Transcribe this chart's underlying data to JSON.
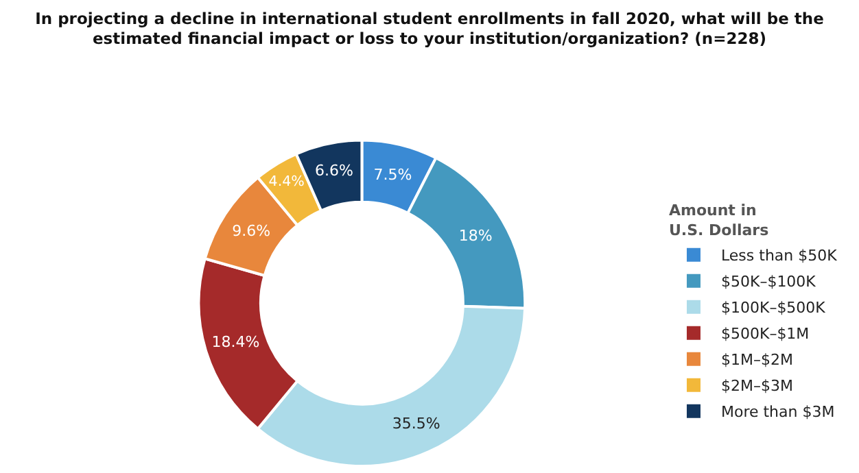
{
  "chart_data": {
    "type": "donut",
    "title": "In projecting a decline in international student enrollments in fall 2020, what will be the\nestimated financial impact or loss to your institution/organization? (n=228)",
    "legend_title": "Amount in\nU.S. Dollars",
    "legend": "right",
    "categories": [
      "Less than $50K",
      "$50K–$100K",
      "$100K–$500K",
      "$500K–$1M",
      "$1M–$2M",
      "$2M–$3M",
      "More than $3M"
    ],
    "values": [
      7.5,
      18,
      35.5,
      18.4,
      9.6,
      4.4,
      6.6
    ],
    "value_labels": [
      "7.5%",
      "18%",
      "35.5%",
      "18.4%",
      "9.6%",
      "4.4%",
      "6.6%"
    ],
    "colors": [
      "#3a8ad4",
      "#4499bf",
      "#acdbe9",
      "#a52a2a",
      "#e8873c",
      "#f2b83a",
      "#12365e"
    ]
  }
}
